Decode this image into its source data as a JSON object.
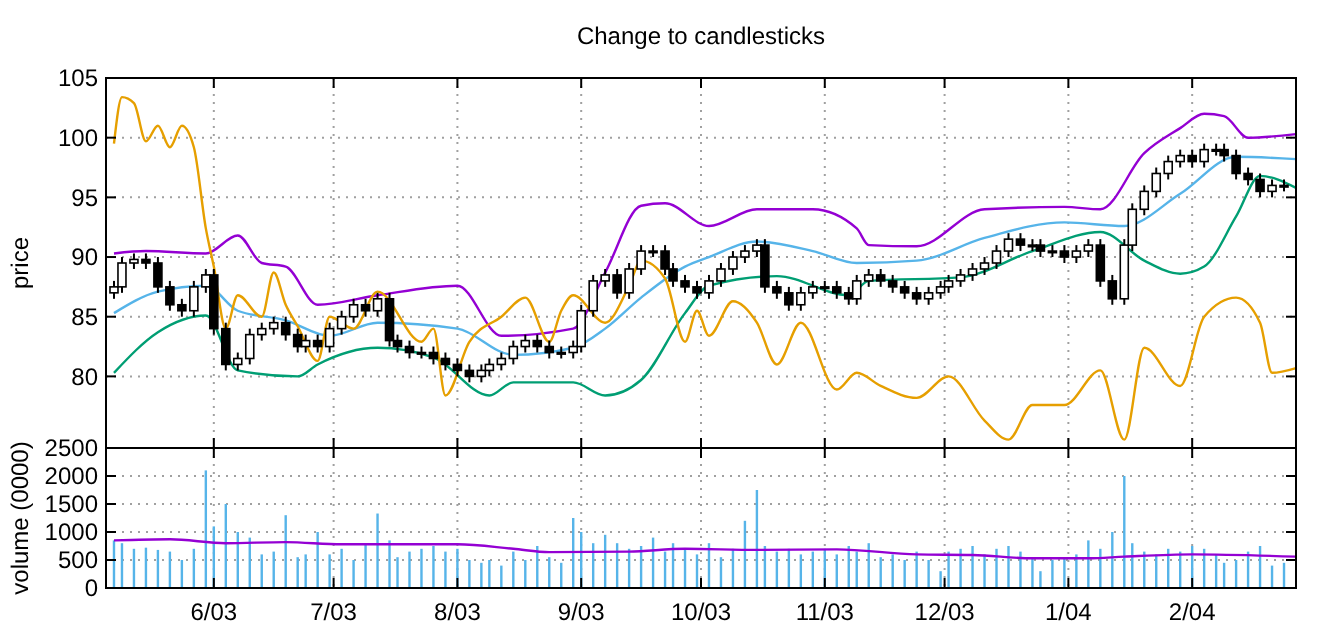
{
  "chart_data": [
    {
      "type": "candlestick",
      "title": "Change to candlesticks",
      "ylabel": "price",
      "xlim": [
        "2003-05-05",
        "2004-02-27"
      ],
      "ylim": [
        74,
        105
      ],
      "yticks": [
        80,
        85,
        90,
        95,
        100,
        105
      ],
      "xticks": [
        {
          "value": "2003-06-01",
          "label": null
        },
        {
          "value": "2003-07-01",
          "label": null
        },
        {
          "value": "2003-08-01",
          "label": null
        },
        {
          "value": "2003-09-01",
          "label": null
        },
        {
          "value": "2003-10-01",
          "label": null
        },
        {
          "value": "2003-11-01",
          "label": null
        },
        {
          "value": "2003-12-01",
          "label": null
        },
        {
          "value": "2004-01-01",
          "label": null
        },
        {
          "value": "2004-02-01",
          "label": null
        }
      ],
      "tick_labels": "y",
      "grid": true,
      "series": [
        {
          "color": "#000000",
          "x": [
            "2003-05-07",
            "2003-05-09",
            "2003-05-12",
            "2003-05-15",
            "2003-05-18",
            "2003-05-21",
            "2003-05-24",
            "2003-05-27",
            "2003-05-30",
            "2003-06-01",
            "2003-06-04",
            "2003-06-07",
            "2003-06-10",
            "2003-06-13",
            "2003-06-16",
            "2003-06-19",
            "2003-06-22",
            "2003-06-24",
            "2003-06-27",
            "2003-06-30",
            "2003-07-03",
            "2003-07-06",
            "2003-07-09",
            "2003-07-12",
            "2003-07-15",
            "2003-07-17",
            "2003-07-20",
            "2003-07-23",
            "2003-07-26",
            "2003-07-29",
            "2003-08-01",
            "2003-08-04",
            "2003-08-07",
            "2003-08-09",
            "2003-08-12",
            "2003-08-15",
            "2003-08-18",
            "2003-08-21",
            "2003-08-24",
            "2003-08-27",
            "2003-08-30",
            "2003-09-01",
            "2003-09-04",
            "2003-09-07",
            "2003-09-10",
            "2003-09-13",
            "2003-09-16",
            "2003-09-19",
            "2003-09-22",
            "2003-09-24",
            "2003-09-27",
            "2003-09-30",
            "2003-10-03",
            "2003-10-06",
            "2003-10-09",
            "2003-10-12",
            "2003-10-15",
            "2003-10-17",
            "2003-10-20",
            "2003-10-23",
            "2003-10-26",
            "2003-10-29",
            "2003-11-01",
            "2003-11-04",
            "2003-11-07",
            "2003-11-09",
            "2003-11-12",
            "2003-11-15",
            "2003-11-18",
            "2003-11-21",
            "2003-11-24",
            "2003-11-27",
            "2003-11-30",
            "2003-12-02",
            "2003-12-05",
            "2003-12-08",
            "2003-12-11",
            "2003-12-14",
            "2003-12-17",
            "2003-12-20",
            "2003-12-23",
            "2003-12-25",
            "2003-12-28",
            "2003-12-31",
            "2004-01-03",
            "2004-01-06",
            "2004-01-09",
            "2004-01-12",
            "2004-01-15",
            "2004-01-17",
            "2004-01-20",
            "2004-01-23",
            "2004-01-26",
            "2004-01-29",
            "2004-02-01",
            "2004-02-04",
            "2004-02-07",
            "2004-02-09",
            "2004-02-12",
            "2004-02-15",
            "2004-02-18",
            "2004-02-21",
            "2004-02-24"
          ],
          "ohlc": [
            [
              87,
              88,
              86.5,
              87.5
            ],
            [
              87.5,
              90,
              87,
              89.5
            ],
            [
              89.5,
              90.3,
              89,
              89.8
            ],
            [
              89.8,
              90.3,
              89,
              89.5
            ],
            [
              89.5,
              90,
              87,
              87.5
            ],
            [
              87.5,
              88,
              85.5,
              86
            ],
            [
              86,
              86.5,
              85,
              85.5
            ],
            [
              85.5,
              88,
              85,
              87.5
            ],
            [
              87.5,
              89,
              87,
              88.5
            ],
            [
              88.5,
              89,
              83.5,
              84
            ],
            [
              84,
              84.5,
              80.5,
              81
            ],
            [
              81,
              82,
              80.5,
              81.5
            ],
            [
              81.5,
              84,
              81,
              83.5
            ],
            [
              83.5,
              84.5,
              83,
              84
            ],
            [
              84,
              85,
              83.5,
              84.5
            ],
            [
              84.5,
              85,
              83,
              83.5
            ],
            [
              83.5,
              84,
              82,
              82.5
            ],
            [
              82.5,
              83.5,
              82,
              83
            ],
            [
              83,
              83.5,
              82,
              82.5
            ],
            [
              82.5,
              84.5,
              82,
              84
            ],
            [
              84,
              85.5,
              83.5,
              85
            ],
            [
              85,
              86.5,
              84.5,
              86
            ],
            [
              86,
              86.5,
              85,
              85.5
            ],
            [
              85.5,
              87,
              85,
              86.5
            ],
            [
              86.5,
              87,
              82.5,
              83
            ],
            [
              83,
              83.5,
              82,
              82.5
            ],
            [
              82.5,
              83,
              81.5,
              82
            ],
            [
              82,
              82.5,
              81.5,
              82
            ],
            [
              82,
              82.5,
              81,
              81.5
            ],
            [
              81.5,
              82,
              80.5,
              81
            ],
            [
              81,
              81.5,
              80,
              80.5
            ],
            [
              80.5,
              81,
              79.5,
              80
            ],
            [
              80,
              81,
              79.5,
              80.5
            ],
            [
              80.5,
              81.5,
              80,
              81
            ],
            [
              81,
              82,
              80.5,
              81.5
            ],
            [
              81.5,
              83,
              81,
              82.5
            ],
            [
              82.5,
              83.5,
              82,
              83
            ],
            [
              83,
              83.5,
              82,
              82.5
            ],
            [
              82.5,
              83,
              81.5,
              82
            ],
            [
              82,
              82.5,
              81.5,
              82
            ],
            [
              82,
              83,
              81.5,
              82.5
            ],
            [
              82.5,
              86,
              82,
              85.5
            ],
            [
              85.5,
              88.5,
              85,
              88
            ],
            [
              88,
              89,
              87.5,
              88.5
            ],
            [
              88.5,
              89,
              86.5,
              87
            ],
            [
              87,
              89.5,
              86.5,
              89
            ],
            [
              89,
              91,
              88.5,
              90.5
            ],
            [
              90.5,
              91,
              90,
              90.5
            ],
            [
              90.5,
              91,
              88.5,
              89
            ],
            [
              89,
              89.5,
              87.5,
              88
            ],
            [
              88,
              88.5,
              87,
              87.5
            ],
            [
              87.5,
              88,
              86.5,
              87
            ],
            [
              87,
              88.5,
              86.5,
              88
            ],
            [
              88,
              89.5,
              87.5,
              89
            ],
            [
              89,
              90.5,
              88.5,
              90
            ],
            [
              90,
              91,
              89.5,
              90.5
            ],
            [
              90.5,
              91.5,
              90,
              91
            ],
            [
              91,
              91.5,
              87,
              87.5
            ],
            [
              87.5,
              88,
              86.5,
              87
            ],
            [
              87,
              87.5,
              85.5,
              86
            ],
            [
              86,
              87.5,
              85.5,
              87
            ],
            [
              87,
              88,
              86.5,
              87.5
            ],
            [
              87.5,
              88,
              87,
              87.5
            ],
            [
              87.5,
              88,
              86.5,
              87
            ],
            [
              87,
              87.5,
              86,
              86.5
            ],
            [
              86.5,
              88.5,
              86,
              88
            ],
            [
              88,
              89,
              87.5,
              88.5
            ],
            [
              88.5,
              89,
              87.5,
              88
            ],
            [
              88,
              88.5,
              87,
              87.5
            ],
            [
              87.5,
              88,
              86.5,
              87
            ],
            [
              87,
              87.5,
              86,
              86.5
            ],
            [
              86.5,
              87.5,
              86,
              87
            ],
            [
              87,
              88,
              86.5,
              87.5
            ],
            [
              87.5,
              88.5,
              87,
              88
            ],
            [
              88,
              89,
              87.5,
              88.5
            ],
            [
              88.5,
              89.5,
              88,
              89
            ],
            [
              89,
              90,
              88.5,
              89.5
            ],
            [
              89.5,
              91,
              89,
              90.5
            ],
            [
              90.5,
              92,
              90,
              91.5
            ],
            [
              91.5,
              92,
              90.5,
              91
            ],
            [
              91,
              91.5,
              90.5,
              91
            ],
            [
              91,
              91.5,
              90,
              90.5
            ],
            [
              90.5,
              91,
              90,
              90.5
            ],
            [
              90.5,
              91,
              89.5,
              90
            ],
            [
              90,
              91,
              89.5,
              90.5
            ],
            [
              90.5,
              91.5,
              90,
              91
            ],
            [
              91,
              91.5,
              87.5,
              88
            ],
            [
              88,
              88.5,
              86,
              86.5
            ],
            [
              86.5,
              91.5,
              86,
              91
            ],
            [
              91,
              94.5,
              90.5,
              94
            ],
            [
              94,
              96,
              93.5,
              95.5
            ],
            [
              95.5,
              97.5,
              95,
              97
            ],
            [
              97,
              98.5,
              96.5,
              98
            ],
            [
              98,
              99,
              97.5,
              98.5
            ],
            [
              98.5,
              99,
              97.5,
              98
            ],
            [
              98,
              99.5,
              97.5,
              99
            ],
            [
              99,
              99.5,
              98.5,
              99
            ],
            [
              99,
              99.5,
              98,
              98.5
            ],
            [
              98.5,
              99,
              96.5,
              97
            ],
            [
              97,
              97.5,
              96,
              96.5
            ],
            [
              96.5,
              97,
              95,
              95.5
            ],
            [
              95.5,
              96.5,
              95,
              96
            ],
            [
              96,
              96.5,
              95.5,
              96
            ]
          ]
        },
        {
          "type": "line",
          "color": "#9400d3",
          "x": [
            "2003-05-07",
            "2003-05-15",
            "2003-05-30",
            "2003-06-07",
            "2003-06-13",
            "2003-06-19",
            "2003-06-27",
            "2003-07-12",
            "2003-08-01",
            "2003-08-12",
            "2003-08-30",
            "2003-09-07",
            "2003-09-16",
            "2003-09-22",
            "2003-10-03",
            "2003-10-15",
            "2003-10-29",
            "2003-11-09",
            "2003-11-12",
            "2003-11-24",
            "2003-12-11",
            "2003-12-31",
            "2004-01-09",
            "2004-01-20",
            "2004-01-29",
            "2004-02-04",
            "2004-02-09",
            "2004-02-15",
            "2004-02-27"
          ],
          "values": [
            90.3,
            90.5,
            90.3,
            91.8,
            89.5,
            89.2,
            86,
            86.8,
            87.6,
            83.4,
            84,
            88.7,
            94.3,
            94.5,
            92.6,
            94,
            94,
            92.4,
            91,
            90.9,
            94,
            94.2,
            94,
            98.7,
            100.8,
            102,
            101.8,
            100,
            100.3
          ]
        },
        {
          "type": "line",
          "color": "#56b4e9",
          "x": [
            "2003-05-07",
            "2003-05-18",
            "2003-05-30",
            "2003-06-07",
            "2003-06-19",
            "2003-06-30",
            "2003-07-12",
            "2003-08-01",
            "2003-08-15",
            "2003-08-30",
            "2003-09-07",
            "2003-09-16",
            "2003-09-27",
            "2003-10-03",
            "2003-10-15",
            "2003-10-29",
            "2003-11-09",
            "2003-11-24",
            "2003-12-11",
            "2003-12-31",
            "2004-01-15",
            "2004-01-29",
            "2004-02-12",
            "2004-02-27"
          ],
          "values": [
            85.3,
            87.1,
            87.6,
            85.5,
            84.7,
            83.4,
            84.5,
            84,
            81.8,
            82.4,
            84,
            86.6,
            89.2,
            90,
            91.3,
            90.5,
            89.5,
            89.7,
            91.6,
            92.9,
            92.6,
            95.3,
            98.4,
            98.2
          ]
        },
        {
          "type": "line",
          "color": "#009e73",
          "x": [
            "2003-05-07",
            "2003-05-18",
            "2003-05-30",
            "2003-06-07",
            "2003-06-22",
            "2003-06-27",
            "2003-07-12",
            "2003-07-26",
            "2003-08-09",
            "2003-08-15",
            "2003-08-30",
            "2003-09-07",
            "2003-09-16",
            "2003-09-27",
            "2003-10-03",
            "2003-10-20",
            "2003-11-07",
            "2003-11-12",
            "2003-12-05",
            "2003-12-23",
            "2004-01-09",
            "2004-01-20",
            "2004-01-29",
            "2004-02-04",
            "2004-02-12",
            "2004-02-18",
            "2004-02-27"
          ],
          "values": [
            80.3,
            83.7,
            85.1,
            80.5,
            80,
            81,
            82.4,
            81.6,
            78.4,
            79.5,
            79.5,
            78.4,
            79.7,
            85.3,
            87.6,
            88.4,
            86.8,
            88,
            88.3,
            90.5,
            92.1,
            89.7,
            88.6,
            89.2,
            93.4,
            96.8,
            95.8
          ]
        },
        {
          "type": "line",
          "color": "#e69f00",
          "x": [
            "2003-05-07",
            "2003-05-09",
            "2003-05-12",
            "2003-05-15",
            "2003-05-18",
            "2003-05-21",
            "2003-05-24",
            "2003-05-27",
            "2003-05-30",
            "2003-06-01",
            "2003-06-04",
            "2003-06-07",
            "2003-06-13",
            "2003-06-16",
            "2003-06-19",
            "2003-06-22",
            "2003-06-27",
            "2003-06-30",
            "2003-07-06",
            "2003-07-12",
            "2003-07-23",
            "2003-07-26",
            "2003-07-29",
            "2003-08-04",
            "2003-08-12",
            "2003-08-18",
            "2003-08-24",
            "2003-08-27",
            "2003-08-30",
            "2003-09-07",
            "2003-09-13",
            "2003-09-16",
            "2003-09-22",
            "2003-09-27",
            "2003-09-30",
            "2003-10-03",
            "2003-10-09",
            "2003-10-15",
            "2003-10-20",
            "2003-10-26",
            "2003-11-04",
            "2003-11-09",
            "2003-11-15",
            "2003-11-24",
            "2003-12-02",
            "2003-12-11",
            "2003-12-17",
            "2003-12-23",
            "2003-12-31",
            "2004-01-09",
            "2004-01-15",
            "2004-01-20",
            "2004-01-29",
            "2004-02-04",
            "2004-02-12",
            "2004-02-18",
            "2004-02-21",
            "2004-02-27"
          ],
          "values": [
            99.5,
            103.4,
            102.9,
            99.7,
            101,
            99.2,
            101,
            99.2,
            92.4,
            89.2,
            84,
            86.8,
            85,
            88.7,
            86,
            84.2,
            81.3,
            85,
            84,
            87.1,
            82.9,
            84,
            78.4,
            82.9,
            85,
            86.6,
            82.9,
            85.5,
            86.8,
            84.5,
            87.6,
            89.7,
            88.2,
            82.9,
            85.5,
            83.4,
            86.3,
            84.5,
            81,
            84.5,
            78.9,
            80.3,
            79.2,
            78.2,
            80,
            76.3,
            74.7,
            77.6,
            77.6,
            80.5,
            74.7,
            82.4,
            79.2,
            85,
            86.6,
            84.5,
            80.3,
            80.7
          ]
        }
      ]
    },
    {
      "type": "bar",
      "ylabel": "volume (0000)",
      "xlim": [
        "2003-05-05",
        "2004-02-27"
      ],
      "ylim": [
        0,
        2500
      ],
      "yticks": [
        0,
        500,
        1000,
        1500,
        2000,
        2500
      ],
      "xticks": [
        {
          "value": "2003-06-01",
          "label": "6/03"
        },
        {
          "value": "2003-07-01",
          "label": "7/03"
        },
        {
          "value": "2003-08-01",
          "label": "8/03"
        },
        {
          "value": "2003-09-01",
          "label": "9/03"
        },
        {
          "value": "2003-10-01",
          "label": "10/03"
        },
        {
          "value": "2003-11-01",
          "label": "11/03"
        },
        {
          "value": "2003-12-01",
          "label": "12/03"
        },
        {
          "value": "2004-01-01",
          "label": "1/04"
        },
        {
          "value": "2004-02-01",
          "label": "2/04"
        }
      ],
      "grid": true,
      "series": [
        {
          "color": "#56b4e9",
          "x": [
            "2003-05-07",
            "2003-05-09",
            "2003-05-12",
            "2003-05-15",
            "2003-05-18",
            "2003-05-21",
            "2003-05-24",
            "2003-05-27",
            "2003-05-30",
            "2003-06-01",
            "2003-06-04",
            "2003-06-07",
            "2003-06-10",
            "2003-06-13",
            "2003-06-16",
            "2003-06-19",
            "2003-06-22",
            "2003-06-24",
            "2003-06-27",
            "2003-06-30",
            "2003-07-03",
            "2003-07-06",
            "2003-07-09",
            "2003-07-12",
            "2003-07-15",
            "2003-07-17",
            "2003-07-20",
            "2003-07-23",
            "2003-07-26",
            "2003-07-29",
            "2003-08-01",
            "2003-08-04",
            "2003-08-07",
            "2003-08-09",
            "2003-08-12",
            "2003-08-15",
            "2003-08-18",
            "2003-08-21",
            "2003-08-24",
            "2003-08-27",
            "2003-08-30",
            "2003-09-01",
            "2003-09-04",
            "2003-09-07",
            "2003-09-10",
            "2003-09-13",
            "2003-09-16",
            "2003-09-19",
            "2003-09-22",
            "2003-09-24",
            "2003-09-27",
            "2003-09-30",
            "2003-10-03",
            "2003-10-06",
            "2003-10-09",
            "2003-10-12",
            "2003-10-15",
            "2003-10-17",
            "2003-10-20",
            "2003-10-23",
            "2003-10-26",
            "2003-10-29",
            "2003-11-01",
            "2003-11-04",
            "2003-11-07",
            "2003-11-09",
            "2003-11-12",
            "2003-11-15",
            "2003-11-18",
            "2003-11-21",
            "2003-11-24",
            "2003-11-27",
            "2003-11-30",
            "2003-12-02",
            "2003-12-05",
            "2003-12-08",
            "2003-12-11",
            "2003-12-14",
            "2003-12-17",
            "2003-12-20",
            "2003-12-23",
            "2003-12-25",
            "2003-12-28",
            "2003-12-31",
            "2004-01-03",
            "2004-01-06",
            "2004-01-09",
            "2004-01-12",
            "2004-01-15",
            "2004-01-17",
            "2004-01-20",
            "2004-01-23",
            "2004-01-26",
            "2004-01-29",
            "2004-02-01",
            "2004-02-04",
            "2004-02-07",
            "2004-02-09",
            "2004-02-12",
            "2004-02-15",
            "2004-02-18",
            "2004-02-21",
            "2004-02-24"
          ],
          "values": [
            850,
            800,
            700,
            720,
            680,
            650,
            500,
            700,
            2100,
            1100,
            1500,
            1000,
            900,
            600,
            650,
            1300,
            550,
            600,
            1000,
            600,
            700,
            500,
            800,
            1330,
            850,
            550,
            650,
            700,
            750,
            650,
            700,
            500,
            450,
            500,
            400,
            650,
            500,
            750,
            550,
            450,
            1250,
            1000,
            800,
            950,
            800,
            700,
            750,
            900,
            650,
            800,
            700,
            600,
            800,
            550,
            700,
            1200,
            1750,
            750,
            650,
            700,
            600,
            650,
            700,
            600,
            750,
            650,
            800,
            550,
            600,
            500,
            650,
            500,
            300,
            650,
            700,
            750,
            600,
            700,
            750,
            650,
            550,
            300,
            500,
            550,
            600,
            850,
            700,
            1000,
            2000,
            800,
            650,
            600,
            700,
            650,
            750,
            700,
            600,
            450,
            500,
            650,
            750,
            400,
            450
          ]
        },
        {
          "type": "line",
          "color": "#9400d3",
          "x": [
            "2003-05-07",
            "2003-05-21",
            "2003-06-04",
            "2003-06-19",
            "2003-07-03",
            "2003-08-01",
            "2003-08-15",
            "2003-08-24",
            "2003-09-13",
            "2003-09-27",
            "2003-10-15",
            "2003-11-04",
            "2003-11-24",
            "2003-12-08",
            "2003-12-23",
            "2004-01-06",
            "2004-01-15",
            "2004-02-01",
            "2004-02-27"
          ],
          "values": [
            850,
            870,
            800,
            820,
            780,
            780,
            700,
            640,
            650,
            700,
            680,
            690,
            600,
            590,
            530,
            530,
            560,
            600,
            560
          ]
        }
      ]
    }
  ]
}
